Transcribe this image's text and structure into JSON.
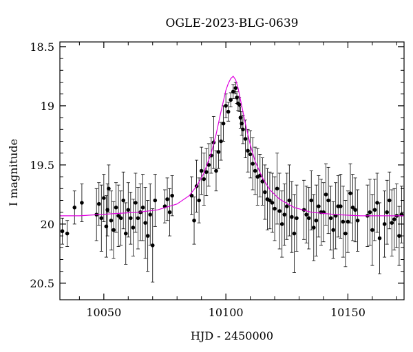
{
  "chart_data": {
    "type": "scatter",
    "title": "OGLE-2023-BLG-0639",
    "xlabel": "HJD - 2450000",
    "ylabel": "I magnitude",
    "xlim": [
      10032,
      10173
    ],
    "ylim": [
      20.64,
      18.46
    ],
    "y_inverted": true,
    "grid": false,
    "xticks": [
      10050,
      10100,
      10150
    ],
    "xtick_labels": [
      "10050",
      "10100",
      "10150"
    ],
    "yticks": [
      18.5,
      19,
      19.5,
      20,
      20.5
    ],
    "ytick_labels": [
      "18.5",
      "19",
      "19.5",
      "20",
      "20.5"
    ],
    "colors": {
      "points": "#000000",
      "model": "#e000e0"
    },
    "model": {
      "x": [
        10032,
        10040,
        10048,
        10056,
        10064,
        10072,
        10080,
        10085,
        10088,
        10091,
        10094,
        10096,
        10098,
        10100,
        10101,
        10102,
        10103,
        10104,
        10105,
        10106,
        10108,
        10110,
        10112,
        10115,
        10118,
        10122,
        10128,
        10135,
        10145,
        10155,
        10165,
        10173
      ],
      "y": [
        19.93,
        19.93,
        19.92,
        19.91,
        19.9,
        19.88,
        19.83,
        19.76,
        19.68,
        19.57,
        19.4,
        19.24,
        19.05,
        18.87,
        18.81,
        18.77,
        18.75,
        18.78,
        18.85,
        18.95,
        19.15,
        19.33,
        19.47,
        19.61,
        19.71,
        19.79,
        19.86,
        19.9,
        19.92,
        19.93,
        19.93,
        19.93
      ]
    },
    "series": [
      {
        "x": [
          10033,
          10035,
          10038,
          10041,
          10047,
          10048,
          10049,
          10050,
          10051,
          10051.5,
          10052,
          10053,
          10054,
          10055,
          10056,
          10057,
          10058,
          10059,
          10060,
          10061,
          10062,
          10063,
          10064,
          10065,
          10066,
          10067,
          10068,
          10069,
          10070,
          10071,
          10075,
          10076,
          10077,
          10078,
          10086,
          10087,
          10088,
          10089,
          10090,
          10091,
          10092,
          10093,
          10094,
          10095,
          10096,
          10097,
          10098,
          10099,
          10100,
          10101,
          10102,
          10103,
          10104,
          10104.5,
          10105,
          10105.5,
          10106,
          10106.5,
          10107,
          10108,
          10109,
          10110,
          10111,
          10112,
          10113,
          10114,
          10115,
          10116,
          10117,
          10118,
          10119,
          10120,
          10121,
          10122,
          10123,
          10124,
          10125,
          10126,
          10127,
          10128,
          10129,
          10132,
          10133,
          10134,
          10135,
          10136,
          10137,
          10138,
          10139,
          10140,
          10141,
          10142,
          10143,
          10144,
          10145,
          10146,
          10147,
          10148,
          10149,
          10150,
          10151,
          10152,
          10153,
          10154,
          10158,
          10159,
          10160,
          10161,
          10162,
          10163,
          10165,
          10166,
          10167,
          10168,
          10169,
          10170,
          10171,
          10172
        ],
        "y": [
          20.06,
          20.08,
          19.86,
          19.82,
          19.92,
          19.83,
          19.95,
          19.78,
          20.02,
          19.88,
          19.7,
          19.97,
          20.05,
          19.86,
          19.93,
          19.95,
          19.8,
          20.08,
          19.88,
          19.95,
          20.03,
          19.82,
          19.95,
          19.9,
          19.86,
          19.99,
          20.1,
          19.92,
          20.18,
          19.8,
          19.85,
          19.79,
          19.9,
          19.76,
          19.76,
          19.97,
          19.68,
          19.8,
          19.55,
          19.62,
          19.56,
          19.5,
          19.42,
          19.31,
          19.55,
          19.39,
          19.3,
          19.15,
          19.0,
          19.05,
          18.95,
          18.88,
          18.85,
          18.93,
          18.98,
          18.99,
          19.1,
          19.15,
          19.2,
          19.28,
          19.38,
          19.41,
          19.49,
          19.55,
          19.6,
          19.59,
          19.64,
          19.73,
          19.79,
          19.8,
          19.82,
          19.87,
          19.7,
          19.89,
          20.0,
          19.92,
          19.85,
          19.8,
          19.94,
          20.08,
          19.95,
          19.88,
          19.92,
          19.95,
          19.8,
          20.03,
          19.97,
          19.85,
          19.9,
          19.9,
          19.75,
          19.8,
          19.95,
          20.05,
          19.93,
          19.85,
          19.85,
          19.98,
          20.08,
          19.98,
          19.74,
          19.86,
          19.88,
          19.97,
          19.93,
          19.9,
          20.05,
          19.88,
          19.82,
          20.12,
          20.0,
          19.9,
          19.8,
          19.99,
          19.96,
          19.93,
          20.1,
          19.92
        ],
        "yerr": [
          0.11,
          0.11,
          0.14,
          0.16,
          0.22,
          0.18,
          0.28,
          0.2,
          0.26,
          0.22,
          0.2,
          0.25,
          0.24,
          0.21,
          0.26,
          0.23,
          0.24,
          0.26,
          0.23,
          0.22,
          0.24,
          0.25,
          0.26,
          0.24,
          0.28,
          0.3,
          0.3,
          0.26,
          0.31,
          0.22,
          0.14,
          0.18,
          0.2,
          0.17,
          0.16,
          0.2,
          0.22,
          0.19,
          0.2,
          0.22,
          0.2,
          0.18,
          0.15,
          0.22,
          0.17,
          0.14,
          0.16,
          0.15,
          0.1,
          0.08,
          0.06,
          0.06,
          0.05,
          0.05,
          0.06,
          0.06,
          0.09,
          0.1,
          0.12,
          0.16,
          0.18,
          0.2,
          0.22,
          0.2,
          0.24,
          0.18,
          0.2,
          0.23,
          0.26,
          0.24,
          0.25,
          0.27,
          0.3,
          0.32,
          0.28,
          0.26,
          0.28,
          0.3,
          0.3,
          0.33,
          0.28,
          0.25,
          0.24,
          0.26,
          0.25,
          0.28,
          0.3,
          0.26,
          0.28,
          0.25,
          0.26,
          0.28,
          0.27,
          0.24,
          0.28,
          0.26,
          0.27,
          0.3,
          0.28,
          0.26,
          0.25,
          0.28,
          0.27,
          0.26,
          0.26,
          0.28,
          0.3,
          0.26,
          0.25,
          0.3,
          0.28,
          0.27,
          0.24,
          0.28,
          0.26,
          0.27,
          0.25,
          0.24
        ]
      }
    ]
  }
}
